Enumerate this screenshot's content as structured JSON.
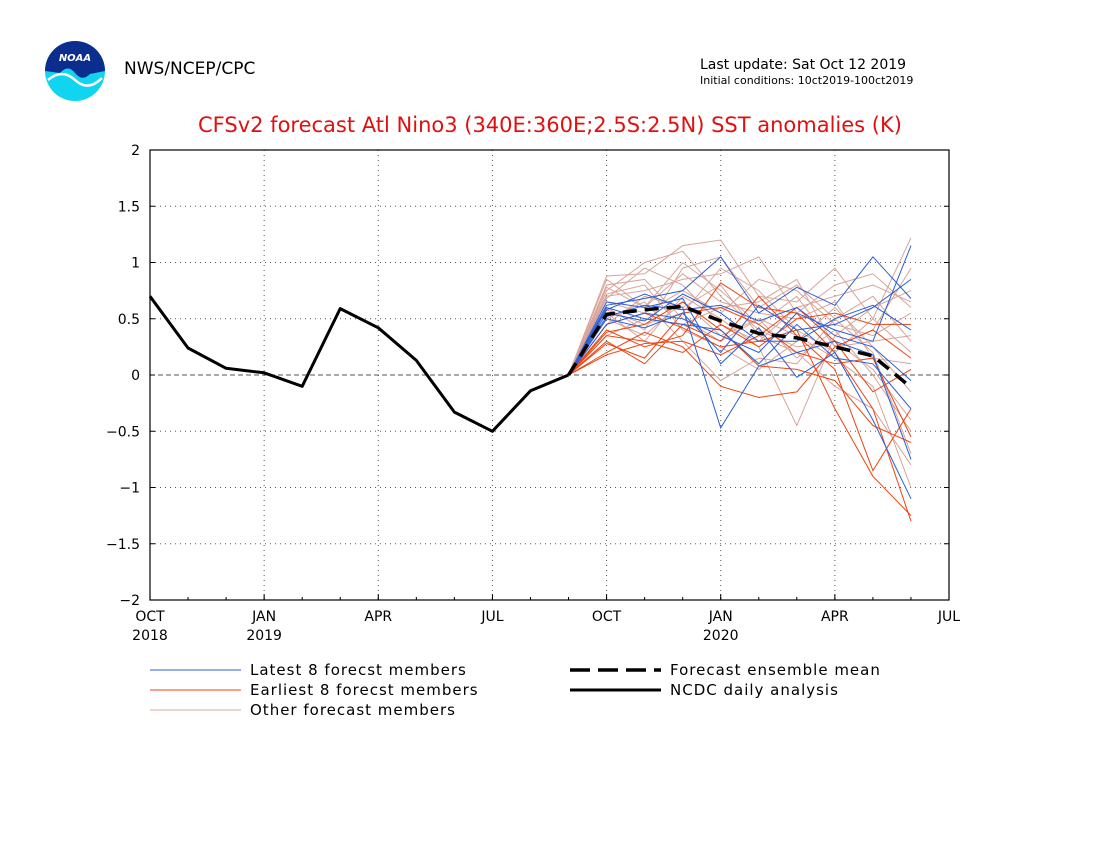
{
  "header": {
    "agency": "NWS/NCEP/CPC",
    "last_update": "Last update: Sat Oct 12 2019",
    "initial_conditions": "Initial conditions: 10ct2019-100ct2019",
    "logo_text": "NOAA"
  },
  "colors": {
    "title": "#e01010",
    "latest": "#2a5fd6",
    "earliest": "#ee4411",
    "other": "#d8a49a",
    "observed": "#000000",
    "mean": "#000000"
  },
  "chart_data": {
    "type": "line",
    "title": "CFSv2 forecast Atl Nino3 (340E:360E;2.5S:2.5N) SST anomalies (K)",
    "xlabel": "",
    "ylabel": "",
    "ylim": [
      -2,
      2
    ],
    "yticks": [
      2,
      1.5,
      1,
      0.5,
      0,
      -0.5,
      -1,
      -1.5,
      -2
    ],
    "ytick_labels": [
      "2",
      "1.5",
      "1",
      "0.5",
      "0",
      "−0.5",
      "−1",
      "−1.5",
      "−2"
    ],
    "x_range": [
      "2018-10",
      "2020-07"
    ],
    "x_ticks": [
      {
        "month": "2018-10",
        "label": "OCT",
        "year": "2018"
      },
      {
        "month": "2019-01",
        "label": "JAN",
        "year": "2019"
      },
      {
        "month": "2019-04",
        "label": "APR",
        "year": ""
      },
      {
        "month": "2019-07",
        "label": "JUL",
        "year": ""
      },
      {
        "month": "2019-10",
        "label": "OCT",
        "year": ""
      },
      {
        "month": "2020-01",
        "label": "JAN",
        "year": "2020"
      },
      {
        "month": "2020-04",
        "label": "APR",
        "year": ""
      },
      {
        "month": "2020-07",
        "label": "JUL",
        "year": ""
      }
    ],
    "grid": true,
    "legend_position": "bottom",
    "observed": {
      "name": "NCDC daily analysis",
      "x": [
        "2018-10",
        "2018-11",
        "2018-12",
        "2019-01",
        "2019-02",
        "2019-03",
        "2019-04",
        "2019-05",
        "2019-06",
        "2019-07",
        "2019-08",
        "2019-09"
      ],
      "y": [
        0.7,
        0.24,
        0.06,
        0.02,
        -0.1,
        0.59,
        0.42,
        0.13,
        -0.33,
        -0.5,
        -0.14,
        0.0
      ]
    },
    "forecast_months": [
      "2019-09",
      "2019-10",
      "2019-11",
      "2019-12",
      "2020-01",
      "2020-02",
      "2020-03",
      "2020-04",
      "2020-05",
      "2020-06"
    ],
    "ensemble_mean": {
      "name": "Forecast ensemble mean",
      "y": [
        0.0,
        0.54,
        0.58,
        0.61,
        0.48,
        0.37,
        0.33,
        0.25,
        0.17,
        -0.11
      ]
    },
    "latest_members": {
      "name": "Latest 8 forecst members",
      "series": [
        [
          0.0,
          0.62,
          0.68,
          0.75,
          1.05,
          0.55,
          0.78,
          0.62,
          1.05,
          0.68
        ],
        [
          0.0,
          0.58,
          0.72,
          0.6,
          -0.47,
          0.08,
          0.2,
          0.3,
          0.18,
          -0.75
        ],
        [
          0.0,
          0.5,
          0.42,
          0.55,
          0.2,
          0.62,
          0.4,
          0.45,
          0.6,
          0.85
        ],
        [
          0.0,
          0.45,
          0.55,
          0.5,
          0.35,
          0.2,
          0.55,
          0.4,
          0.3,
          1.15
        ],
        [
          0.0,
          0.65,
          0.6,
          0.68,
          0.1,
          0.42,
          -0.02,
          0.2,
          -0.4,
          -1.1
        ],
        [
          0.0,
          0.55,
          0.48,
          0.72,
          0.55,
          0.3,
          0.3,
          0.5,
          0.62,
          0.4
        ],
        [
          0.0,
          0.6,
          0.5,
          0.45,
          0.4,
          0.1,
          0.45,
          0.15,
          0.1,
          -0.3
        ],
        [
          0.0,
          0.52,
          0.62,
          0.58,
          0.62,
          0.48,
          0.6,
          0.35,
          0.25,
          -0.05
        ]
      ]
    },
    "earliest_members": {
      "name": "Earliest 8 forecst members",
      "series": [
        [
          0.0,
          0.4,
          0.25,
          0.35,
          0.82,
          0.6,
          0.55,
          0.2,
          -0.3,
          -1.3
        ],
        [
          0.0,
          0.3,
          0.1,
          0.45,
          0.3,
          0.7,
          0.35,
          0.05,
          -0.85,
          -0.3
        ],
        [
          0.0,
          0.35,
          0.3,
          0.2,
          0.45,
          0.25,
          0.5,
          0.55,
          0.45,
          0.45
        ],
        [
          0.0,
          0.2,
          0.38,
          0.25,
          -0.1,
          -0.2,
          -0.15,
          0.25,
          0.4,
          0.15
        ],
        [
          0.0,
          0.45,
          0.55,
          0.42,
          0.25,
          0.3,
          0.4,
          -0.3,
          -0.9,
          -1.25
        ],
        [
          0.0,
          0.28,
          0.15,
          0.55,
          0.6,
          0.45,
          0.2,
          0.1,
          0.15,
          -0.55
        ],
        [
          0.0,
          0.38,
          0.45,
          0.65,
          0.4,
          0.08,
          0.05,
          -0.05,
          -0.45,
          -0.6
        ],
        [
          0.0,
          0.18,
          0.28,
          0.3,
          0.18,
          0.35,
          0.6,
          0.3,
          -0.15,
          0.05
        ]
      ]
    },
    "other_members": {
      "name": "Other forecast members",
      "series": [
        [
          0.0,
          0.88,
          0.9,
          1.15,
          1.2,
          0.7,
          0.65,
          0.95,
          0.5,
          1.22
        ],
        [
          0.0,
          0.7,
          0.75,
          0.85,
          0.9,
          1.05,
          0.55,
          0.8,
          0.9,
          0.6
        ],
        [
          0.0,
          0.75,
          1.0,
          1.1,
          0.7,
          0.4,
          0.25,
          0.3,
          0.05,
          -0.4
        ],
        [
          0.0,
          0.6,
          0.4,
          0.95,
          1.05,
          0.6,
          0.8,
          0.5,
          0.2,
          -0.7
        ],
        [
          0.0,
          0.55,
          0.3,
          0.7,
          0.5,
          0.25,
          -0.45,
          0.35,
          0.6,
          0.75
        ],
        [
          0.0,
          0.8,
          0.85,
          0.5,
          0.3,
          0.5,
          0.35,
          0.15,
          -0.1,
          -1.0
        ],
        [
          0.0,
          0.5,
          0.65,
          0.3,
          -0.05,
          0.15,
          0.1,
          0.5,
          0.7,
          0.3
        ],
        [
          0.0,
          0.65,
          0.55,
          0.75,
          0.55,
          0.85,
          0.75,
          0.45,
          0.35,
          0.55
        ],
        [
          0.0,
          0.45,
          0.7,
          0.6,
          0.8,
          0.35,
          0.2,
          -0.1,
          -0.3,
          -0.8
        ],
        [
          0.0,
          0.85,
          0.6,
          0.9,
          0.65,
          0.55,
          0.5,
          0.65,
          0.15,
          0.1
        ],
        [
          0.0,
          0.35,
          0.5,
          0.45,
          0.6,
          0.65,
          0.85,
          0.25,
          0.4,
          0.95
        ],
        [
          0.0,
          0.72,
          0.8,
          0.4,
          0.25,
          0.05,
          0.3,
          0.6,
          0.25,
          -0.15
        ],
        [
          0.0,
          0.58,
          0.45,
          0.55,
          0.95,
          0.75,
          0.4,
          0.2,
          0.5,
          0.2
        ],
        [
          0.0,
          0.68,
          0.95,
          0.8,
          0.45,
          0.3,
          0.6,
          0.7,
          0.8,
          0.65
        ],
        [
          0.0,
          0.5,
          0.35,
          0.65,
          0.35,
          0.5,
          0.15,
          0.4,
          0.0,
          -0.5
        ],
        [
          0.0,
          0.78,
          0.6,
          1.0,
          0.75,
          0.45,
          0.7,
          0.25,
          0.3,
          0.35
        ]
      ]
    }
  }
}
